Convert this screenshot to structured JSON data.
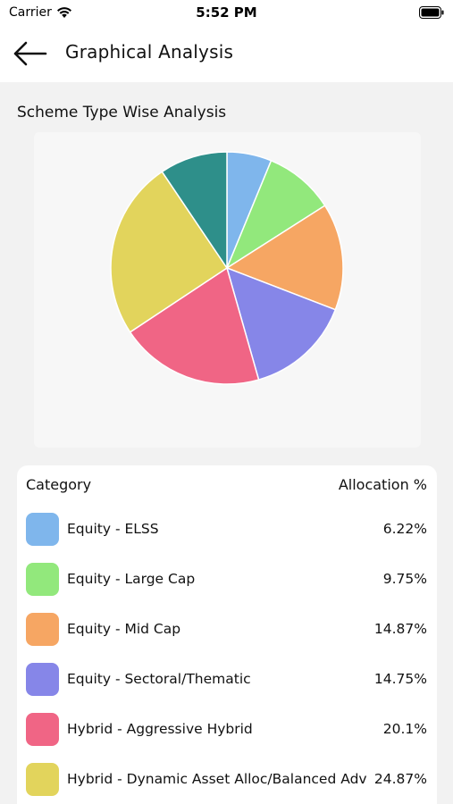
{
  "status_bar": {
    "carrier": "Carrier",
    "time": "5:52 PM"
  },
  "header": {
    "title": "Graphical Analysis"
  },
  "section": {
    "title": "Scheme Type Wise Analysis"
  },
  "table": {
    "col_category": "Category",
    "col_allocation": "Allocation %",
    "rows": [
      {
        "label": "Equity - ELSS",
        "value": "6.22%",
        "color": "#7fb6ec"
      },
      {
        "label": "Equity - Large Cap",
        "value": "9.75%",
        "color": "#92e87c"
      },
      {
        "label": "Equity - Mid Cap",
        "value": "14.87%",
        "color": "#f6a663"
      },
      {
        "label": "Equity - Sectoral/Thematic",
        "value": "14.75%",
        "color": "#8686e8"
      },
      {
        "label": "Hybrid - Aggressive Hybrid",
        "value": "20.1%",
        "color": "#f06585"
      },
      {
        "label": "Hybrid - Dynamic Asset Alloc/Balanced Adv",
        "value": "24.87%",
        "color": "#e2d45c"
      }
    ]
  },
  "chart_data": {
    "type": "pie",
    "title": "",
    "slices": [
      {
        "label": "Equity - ELSS",
        "value": 6.22,
        "color": "#7fb6ec"
      },
      {
        "label": "Equity - Large Cap",
        "value": 9.75,
        "color": "#92e87c"
      },
      {
        "label": "Equity - Mid Cap",
        "value": 14.87,
        "color": "#f6a663"
      },
      {
        "label": "Equity - Sectoral/Thematic",
        "value": 14.75,
        "color": "#8686e8"
      },
      {
        "label": "Hybrid - Aggressive Hybrid",
        "value": 20.1,
        "color": "#f06585"
      },
      {
        "label": "Hybrid - Dynamic Asset Alloc/Balanced Adv",
        "value": 24.87,
        "color": "#e2d45c"
      },
      {
        "label": "",
        "value": 9.44,
        "color": "#2e8f8a"
      }
    ]
  }
}
